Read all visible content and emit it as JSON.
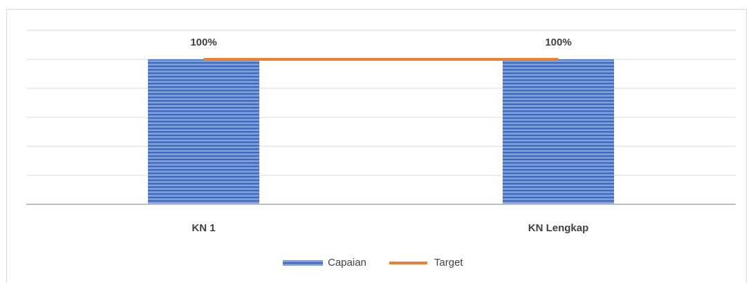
{
  "chart_data": {
    "type": "bar-line",
    "categories": [
      "KN 1",
      "KN Lengkap"
    ],
    "series": [
      {
        "name": "Capaian",
        "type": "bar",
        "color": "#4472c4",
        "values": [
          100,
          100
        ],
        "value_labels": [
          "100%",
          "100%"
        ]
      },
      {
        "name": "Target",
        "type": "line",
        "color": "#ed7d31",
        "values": [
          100,
          100
        ]
      }
    ],
    "ylim": [
      0,
      120
    ],
    "yticks": [
      0,
      20,
      40,
      60,
      80,
      100,
      120
    ],
    "grid": true,
    "legend": "bottom"
  }
}
